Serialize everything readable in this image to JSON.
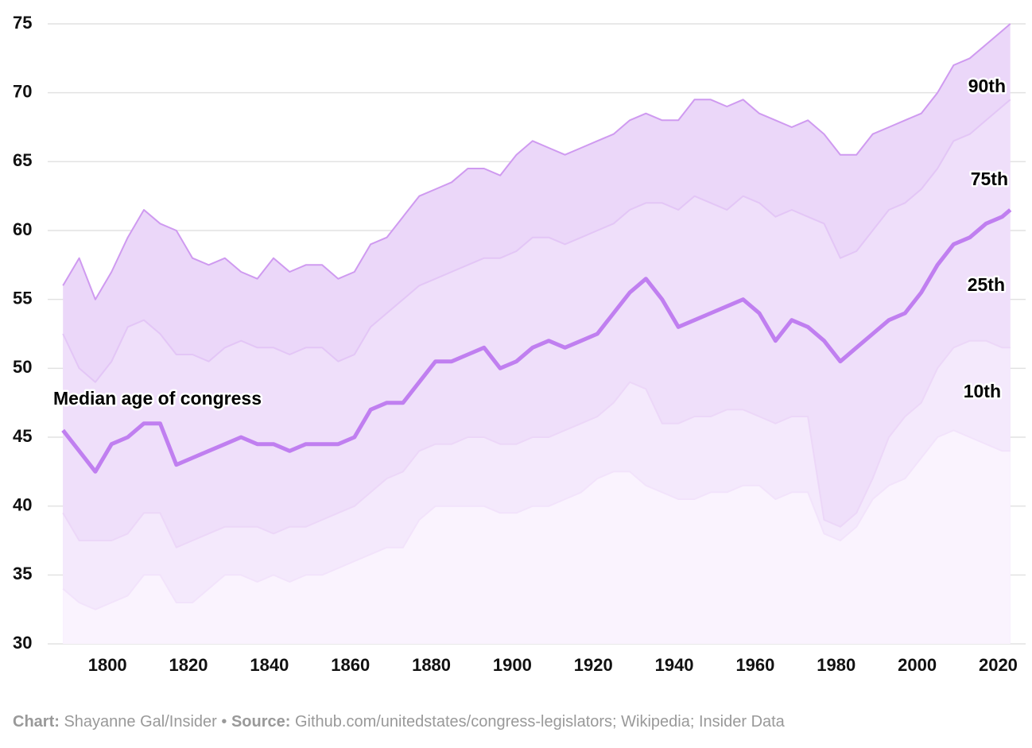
{
  "chart_data": {
    "type": "line",
    "x": [
      1789,
      1793,
      1797,
      1801,
      1805,
      1809,
      1813,
      1817,
      1821,
      1825,
      1829,
      1833,
      1837,
      1841,
      1845,
      1849,
      1853,
      1857,
      1861,
      1865,
      1869,
      1873,
      1877,
      1881,
      1885,
      1889,
      1893,
      1897,
      1901,
      1905,
      1909,
      1913,
      1917,
      1921,
      1925,
      1929,
      1933,
      1937,
      1941,
      1945,
      1949,
      1953,
      1957,
      1961,
      1965,
      1969,
      1973,
      1977,
      1981,
      1985,
      1989,
      1993,
      1997,
      2001,
      2005,
      2009,
      2013,
      2017,
      2021,
      2023
    ],
    "series": [
      {
        "name": "90th",
        "color": "#cf9af0",
        "fill": "#ebd7f9",
        "values": [
          56,
          58,
          55,
          57,
          59.5,
          61.5,
          60.5,
          60,
          58,
          57.5,
          58,
          57,
          56.5,
          58,
          57,
          57.5,
          57.5,
          56.5,
          57,
          59,
          59.5,
          61,
          62.5,
          63,
          63.5,
          64.5,
          64.5,
          64,
          65.5,
          66.5,
          66,
          65.5,
          66,
          66.5,
          67,
          68,
          68.5,
          68,
          68,
          69.5,
          69.5,
          69,
          69.5,
          68.5,
          68,
          67.5,
          68,
          67,
          65.5,
          65.5,
          67,
          67.5,
          68,
          68.5,
          70,
          72,
          72.5,
          73.5,
          74.5,
          75
        ]
      },
      {
        "name": "75th",
        "color": "#e3c6f6",
        "fill": "#efdffa",
        "values": [
          52.5,
          50,
          49,
          50.5,
          53,
          53.5,
          52.5,
          51,
          51,
          50.5,
          51.5,
          52,
          51.5,
          51.5,
          51,
          51.5,
          51.5,
          50.5,
          51,
          53,
          54,
          55,
          56,
          56.5,
          57,
          57.5,
          58,
          58,
          58.5,
          59.5,
          59.5,
          59,
          59.5,
          60,
          60.5,
          61.5,
          62,
          62,
          61.5,
          62.5,
          62,
          61.5,
          62.5,
          62,
          61,
          61.5,
          61,
          60.5,
          58,
          58.5,
          60,
          61.5,
          62,
          63,
          64.5,
          66.5,
          67,
          68,
          69,
          69.5
        ]
      },
      {
        "name": "25th",
        "color": "#ecd7f8",
        "fill": "#f4e9fc",
        "values": [
          39.5,
          37.5,
          37.5,
          37.5,
          38,
          39.5,
          39.5,
          37,
          37.5,
          38,
          38.5,
          38.5,
          38.5,
          38,
          38.5,
          38.5,
          39,
          39.5,
          40,
          41,
          42,
          42.5,
          44,
          44.5,
          44.5,
          45,
          45,
          44.5,
          44.5,
          45,
          45,
          45.5,
          46,
          46.5,
          47.5,
          49,
          48.5,
          46,
          46,
          46.5,
          46.5,
          47,
          47,
          46.5,
          46,
          46.5,
          46.5,
          39,
          38.5,
          39.5,
          42,
          45,
          46.5,
          47.5,
          50,
          51.5,
          52,
          52,
          51.5,
          51.5
        ]
      },
      {
        "name": "10th",
        "color": "#f2e3fb",
        "fill": "#faf3fe",
        "values": [
          34,
          33,
          32.5,
          33,
          33.5,
          35,
          35,
          33,
          33,
          34,
          35,
          35,
          34.5,
          35,
          34.5,
          35,
          35,
          35.5,
          36,
          36.5,
          37,
          37,
          39,
          40,
          40,
          40,
          40,
          39.5,
          39.5,
          40,
          40,
          40.5,
          41,
          42,
          42.5,
          42.5,
          41.5,
          41,
          40.5,
          40.5,
          41,
          41,
          41.5,
          41.5,
          40.5,
          41,
          41,
          38,
          37.5,
          38.5,
          40.5,
          41.5,
          42,
          43.5,
          45,
          45.5,
          45,
          44.5,
          44,
          44
        ]
      },
      {
        "name": "Median age of congress",
        "color": "#c07ff0",
        "values": [
          45.5,
          44,
          42.5,
          44.5,
          45,
          46,
          46,
          43,
          43.5,
          44,
          44.5,
          45,
          44.5,
          44.5,
          44,
          44.5,
          44.5,
          44.5,
          45,
          47,
          47.5,
          47.5,
          49,
          50.5,
          50.5,
          51,
          51.5,
          50,
          50.5,
          51.5,
          52,
          51.5,
          52,
          52.5,
          54,
          55.5,
          56.5,
          55,
          53,
          53.5,
          54,
          54.5,
          55,
          54,
          52,
          53.5,
          53,
          52,
          50.5,
          51.5,
          52.5,
          53.5,
          54,
          55.5,
          57.5,
          59,
          59.5,
          60.5,
          61,
          61.5
        ]
      }
    ],
    "xlim": [
      1787,
      2026
    ],
    "xticks": [
      1800,
      1820,
      1840,
      1860,
      1880,
      1900,
      1920,
      1940,
      1960,
      1980,
      2000,
      2020
    ],
    "ylim": [
      30,
      75
    ],
    "yticks": [
      30,
      35,
      40,
      45,
      50,
      55,
      60,
      65,
      70,
      75
    ],
    "grid": true,
    "credit_label": "Chart:",
    "credit": "Shayanne Gal/Insider",
    "separator": "•",
    "source_label": "Source:",
    "source": "Github.com/unitedstates/congress-legislators; Wikipedia; Insider Data"
  }
}
